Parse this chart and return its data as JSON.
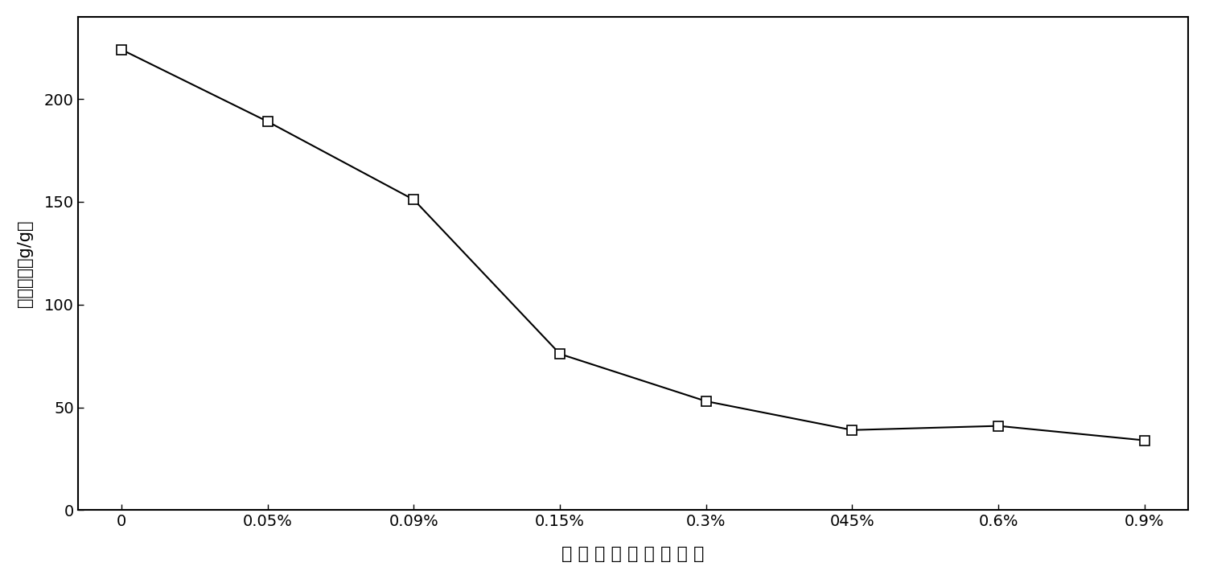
{
  "x_labels": [
    "0",
    "0.05%",
    "0.09%",
    "0.15%",
    "0.3%",
    "045%",
    "0.6%",
    "0.9%"
  ],
  "x_positions": [
    0,
    1,
    2,
    3,
    4,
    5,
    6,
    7
  ],
  "y_values": [
    224,
    189,
    151,
    76,
    53,
    39,
    41,
    34
  ],
  "ylabel": "吸水倍率（g/g）",
  "xlabel": "氯 化 钓 溶 液 质 量 分 数",
  "ylim": [
    0,
    240
  ],
  "yticks": [
    0,
    50,
    100,
    150,
    200
  ],
  "line_color": "#000000",
  "marker": "s",
  "marker_facecolor": "#ffffff",
  "marker_edgecolor": "#000000",
  "marker_size": 8,
  "line_width": 1.5,
  "background_color": "#ffffff",
  "border_color": "#000000"
}
